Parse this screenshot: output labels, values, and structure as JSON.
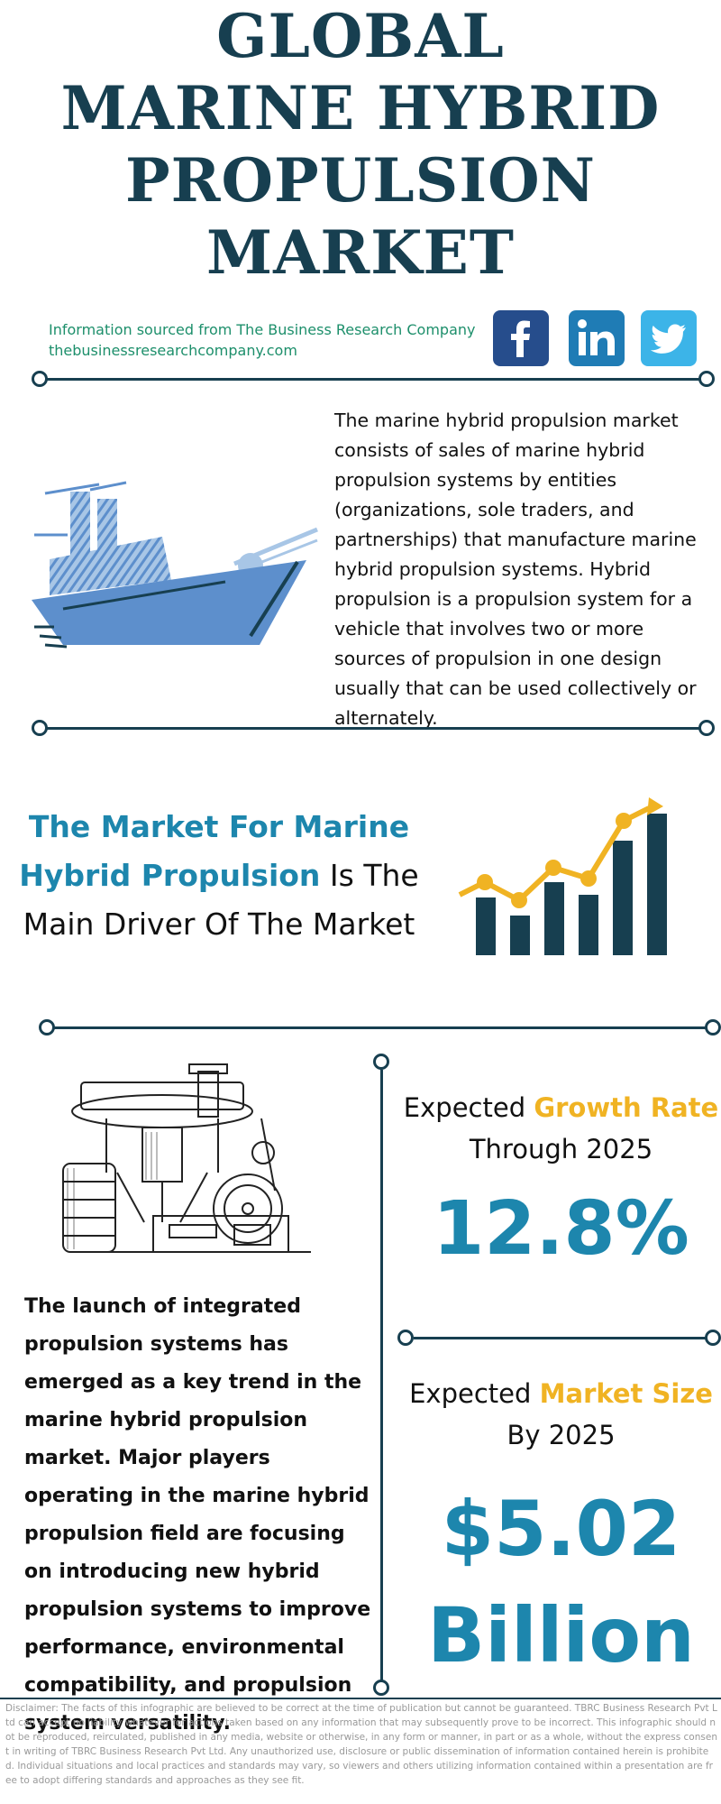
{
  "title": {
    "line1": "GLOBAL",
    "line2": "MARINE HYBRID",
    "line3": "PROPULSION",
    "line4": "MARKET"
  },
  "source": {
    "line1": "Information sourced from The Business Research Company",
    "line2": "thebusinessresearchcompany.com"
  },
  "social": {
    "facebook_icon": "facebook-icon",
    "linkedin_icon": "linkedin-icon",
    "twitter_icon": "twitter-icon"
  },
  "description": "The marine hybrid propulsion market consists of sales of marine hybrid propulsion systems by entities (organizations, sole traders, and partnerships) that manufacture marine hybrid propulsion systems. Hybrid propulsion is a propulsion system for a vehicle that involves two or more sources of propulsion in one design usually that can be used collectively or alternately.",
  "driver": {
    "highlight": "The Market For Marine Hybrid Propulsion",
    "rest": " Is The Main Driver Of The Market"
  },
  "trend": "The launch of integrated propulsion systems has emerged as a key trend in the marine hybrid propulsion market. Major players operating in the marine hybrid propulsion field are focusing on introducing new hybrid propulsion systems to improve performance, environmental compatibility, and propulsion system versatility.",
  "growth": {
    "prefix": "Expected ",
    "highlight": "Growth Rate",
    "line2": "Through 2025",
    "value": "12.8%"
  },
  "market_size": {
    "prefix": "Expected ",
    "highlight": "Market Size",
    "line2": "By 2025",
    "value_line1": "$5.02",
    "value_line2": "Billion"
  },
  "disclaimer": "Disclaimer: The facts of this infographic are believed to be correct at the time of publication but cannot be guaranteed. TBRC Business Research Pvt Ltd can accept no liability whatever for actions taken based on any information that may subsequently prove to be incorrect. This infographic should not be reproduced, reirculated, published in any media, website or otherwise, in any form or manner, in part or as a whole, without the express consent in writing of TBRC Business Research Pvt Ltd. Any unauthorized use, disclosure or public dissemination of information contained herein is prohibited. Individual situations and local practices and standards may vary, so viewers and others utilizing information contained within a presentation are free to adopt differing standards and approaches as they see fit.",
  "colors": {
    "navy": "#173f50",
    "accent_blue": "#1d86ad",
    "gold": "#f0b323",
    "source_green": "#1d8f6b"
  }
}
